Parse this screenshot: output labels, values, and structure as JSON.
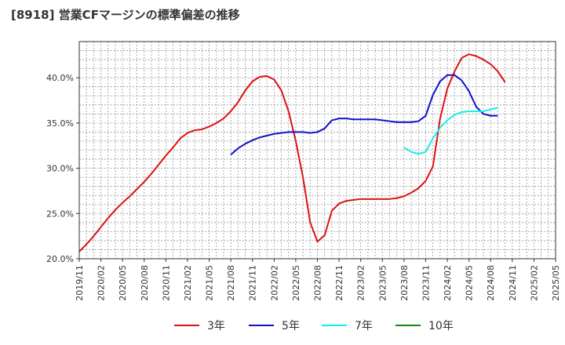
{
  "title": "[8918]  営業CFマージンの標準偏差の推移",
  "chart_data": {
    "type": "line",
    "xlabel": "",
    "ylabel": "",
    "x": [
      "2019/11",
      "2020/02",
      "2020/05",
      "2020/08",
      "2020/11",
      "2021/02",
      "2021/05",
      "2021/08",
      "2021/11",
      "2022/02",
      "2022/05",
      "2022/08",
      "2022/11",
      "2023/02",
      "2023/05",
      "2023/08",
      "2023/11",
      "2024/02",
      "2024/05",
      "2024/08",
      "2024/11",
      "2025/02",
      "2025/05"
    ],
    "ylim": [
      20.0,
      44.0
    ],
    "yticks": [
      "20.0%",
      "25.0%",
      "30.0%",
      "35.0%",
      "40.0%"
    ],
    "grid": true,
    "legend_position": "bottom",
    "series": [
      {
        "name": "3年",
        "color": "#dd1111",
        "points": [
          [
            "2019/11",
            20.8
          ],
          [
            "2019/12",
            21.6
          ],
          [
            "2020/01",
            22.5
          ],
          [
            "2020/02",
            23.5
          ],
          [
            "2020/03",
            24.5
          ],
          [
            "2020/04",
            25.4
          ],
          [
            "2020/05",
            26.2
          ],
          [
            "2020/06",
            26.9
          ],
          [
            "2020/07",
            27.7
          ],
          [
            "2020/08",
            28.5
          ],
          [
            "2020/09",
            29.4
          ],
          [
            "2020/10",
            30.4
          ],
          [
            "2020/11",
            31.4
          ],
          [
            "2020/12",
            32.3
          ],
          [
            "2021/01",
            33.3
          ],
          [
            "2021/02",
            33.9
          ],
          [
            "2021/03",
            34.2
          ],
          [
            "2021/04",
            34.3
          ],
          [
            "2021/05",
            34.6
          ],
          [
            "2021/06",
            35.0
          ],
          [
            "2021/07",
            35.5
          ],
          [
            "2021/08",
            36.3
          ],
          [
            "2021/09",
            37.3
          ],
          [
            "2021/10",
            38.6
          ],
          [
            "2021/11",
            39.6
          ],
          [
            "2021/12",
            40.1
          ],
          [
            "2022/01",
            40.2
          ],
          [
            "2022/02",
            39.8
          ],
          [
            "2022/03",
            38.6
          ],
          [
            "2022/04",
            36.3
          ],
          [
            "2022/05",
            33.0
          ],
          [
            "2022/06",
            29.0
          ],
          [
            "2022/07",
            24.0
          ],
          [
            "2022/08",
            21.9
          ],
          [
            "2022/09",
            22.6
          ],
          [
            "2022/10",
            25.3
          ],
          [
            "2022/11",
            26.1
          ],
          [
            "2022/12",
            26.4
          ],
          [
            "2023/01",
            26.5
          ],
          [
            "2023/02",
            26.6
          ],
          [
            "2023/03",
            26.6
          ],
          [
            "2023/04",
            26.6
          ],
          [
            "2023/05",
            26.6
          ],
          [
            "2023/06",
            26.6
          ],
          [
            "2023/07",
            26.7
          ],
          [
            "2023/08",
            26.9
          ],
          [
            "2023/09",
            27.3
          ],
          [
            "2023/10",
            27.8
          ],
          [
            "2023/11",
            28.6
          ],
          [
            "2023/12",
            30.2
          ],
          [
            "2024/01",
            35.5
          ],
          [
            "2024/02",
            38.8
          ],
          [
            "2024/03",
            40.7
          ],
          [
            "2024/04",
            42.2
          ],
          [
            "2024/05",
            42.6
          ],
          [
            "2024/06",
            42.4
          ],
          [
            "2024/07",
            42.0
          ],
          [
            "2024/08",
            41.5
          ],
          [
            "2024/09",
            40.7
          ],
          [
            "2024/10",
            39.5
          ]
        ]
      },
      {
        "name": "5年",
        "color": "#1111cc",
        "points": [
          [
            "2021/08",
            31.5
          ],
          [
            "2021/09",
            32.2
          ],
          [
            "2021/10",
            32.7
          ],
          [
            "2021/11",
            33.1
          ],
          [
            "2021/12",
            33.4
          ],
          [
            "2022/01",
            33.6
          ],
          [
            "2022/02",
            33.8
          ],
          [
            "2022/03",
            33.9
          ],
          [
            "2022/04",
            34.0
          ],
          [
            "2022/05",
            34.0
          ],
          [
            "2022/06",
            34.0
          ],
          [
            "2022/07",
            33.9
          ],
          [
            "2022/08",
            34.0
          ],
          [
            "2022/09",
            34.4
          ],
          [
            "2022/10",
            35.3
          ],
          [
            "2022/11",
            35.5
          ],
          [
            "2022/12",
            35.5
          ],
          [
            "2023/01",
            35.4
          ],
          [
            "2023/02",
            35.4
          ],
          [
            "2023/03",
            35.4
          ],
          [
            "2023/04",
            35.4
          ],
          [
            "2023/05",
            35.3
          ],
          [
            "2023/06",
            35.2
          ],
          [
            "2023/07",
            35.1
          ],
          [
            "2023/08",
            35.1
          ],
          [
            "2023/09",
            35.1
          ],
          [
            "2023/10",
            35.2
          ],
          [
            "2023/11",
            35.8
          ],
          [
            "2023/12",
            38.1
          ],
          [
            "2024/01",
            39.6
          ],
          [
            "2024/02",
            40.3
          ],
          [
            "2024/03",
            40.3
          ],
          [
            "2024/04",
            39.7
          ],
          [
            "2024/05",
            38.5
          ],
          [
            "2024/06",
            36.8
          ],
          [
            "2024/07",
            36.0
          ],
          [
            "2024/08",
            35.8
          ],
          [
            "2024/09",
            35.8
          ]
        ]
      },
      {
        "name": "7年",
        "color": "#11eeee",
        "points": [
          [
            "2023/08",
            32.3
          ],
          [
            "2023/09",
            31.8
          ],
          [
            "2023/10",
            31.6
          ],
          [
            "2023/11",
            31.8
          ],
          [
            "2023/12",
            33.3
          ],
          [
            "2024/01",
            34.5
          ],
          [
            "2024/02",
            35.3
          ],
          [
            "2024/03",
            35.9
          ],
          [
            "2024/04",
            36.2
          ],
          [
            "2024/05",
            36.3
          ],
          [
            "2024/06",
            36.3
          ],
          [
            "2024/07",
            36.3
          ],
          [
            "2024/08",
            36.5
          ],
          [
            "2024/09",
            36.7
          ]
        ]
      },
      {
        "name": "10年",
        "color": "#118811",
        "points": []
      }
    ]
  }
}
